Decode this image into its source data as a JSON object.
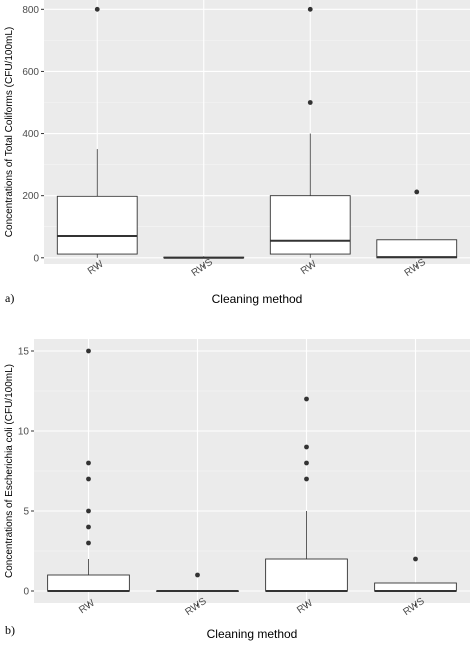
{
  "chart_data": [
    {
      "type": "box",
      "panel_label": "a)",
      "xlabel": "Cleaning method",
      "ylabel": "Concentrations of Total Coliforms (CFU/100mL)",
      "categories": [
        "RW",
        "RWS",
        "RW",
        "RWS"
      ],
      "ylim": [
        -20,
        830
      ],
      "yticks": [
        0,
        200,
        400,
        600,
        800
      ],
      "grid": true,
      "boxes": [
        {
          "category": "RW",
          "lower_whisker": 0,
          "q1": 12,
          "median": 70,
          "q3": 198,
          "upper_whisker": 350,
          "outliers": [
            800
          ]
        },
        {
          "category": "RWS",
          "lower_whisker": 0,
          "q1": 0,
          "median": 0,
          "q3": 2,
          "upper_whisker": 5,
          "outliers": []
        },
        {
          "category": "RW",
          "lower_whisker": 0,
          "q1": 12,
          "median": 55,
          "q3": 200,
          "upper_whisker": 400,
          "outliers": [
            500,
            800
          ]
        },
        {
          "category": "RWS",
          "lower_whisker": 0,
          "q1": 0,
          "median": 2,
          "q3": 58,
          "upper_whisker": 58,
          "outliers": [
            212
          ]
        }
      ]
    },
    {
      "type": "box",
      "panel_label": "b)",
      "xlabel": "Cleaning method",
      "ylabel": "Concentrations of Escherichia coli (CFU/100mL)",
      "categories": [
        "RW",
        "RWS",
        "RW",
        "RWS"
      ],
      "ylim": [
        -0.75,
        15.75
      ],
      "yticks": [
        0,
        5,
        10,
        15
      ],
      "grid": true,
      "boxes": [
        {
          "category": "RW",
          "lower_whisker": 0,
          "q1": 0,
          "median": 0,
          "q3": 1,
          "upper_whisker": 2,
          "outliers": [
            3,
            4,
            5,
            7,
            8,
            15
          ]
        },
        {
          "category": "RWS",
          "lower_whisker": 0,
          "q1": 0,
          "median": 0,
          "q3": 0,
          "upper_whisker": 0,
          "outliers": [
            1
          ]
        },
        {
          "category": "RW",
          "lower_whisker": 0,
          "q1": 0,
          "median": 0,
          "q3": 2,
          "upper_whisker": 5,
          "outliers": [
            7,
            8,
            9,
            12
          ]
        },
        {
          "category": "RWS",
          "lower_whisker": 0,
          "q1": 0,
          "median": 0,
          "q3": 0.5,
          "upper_whisker": 0.5,
          "outliers": [
            2
          ]
        }
      ]
    }
  ],
  "colors": {
    "panel_background": "#ebebeb",
    "grid_major": "#ffffff",
    "grid_minor": "#f5f5f5",
    "box_fill": "#ffffff",
    "box_stroke": "#333333",
    "outlier": "#333333",
    "tick_text": "#4d4d4d"
  }
}
